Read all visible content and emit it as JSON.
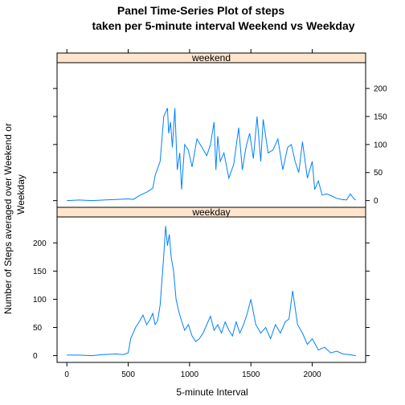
{
  "chart_data": {
    "type": "line",
    "title_line1": "Panel Time-Series Plot of steps",
    "title_line2": "taken per 5-minute interval Weekend vs Weekday",
    "xlabel": "5-minute Interval",
    "ylabel_line1": "Number of Steps averaged over Weekend or",
    "ylabel_line2": "Weekday",
    "xlim": [
      -80,
      2435
    ],
    "x_ticks": [
      0,
      500,
      1000,
      1500,
      2000
    ],
    "ylim": [
      -12,
      246
    ],
    "y_ticks": [
      0,
      50,
      100,
      150,
      200
    ],
    "line_color": "#0080ff",
    "strip_color": "#ffe5cc",
    "panels": [
      {
        "name": "weekend",
        "x": [
          0,
          100,
          200,
          300,
          400,
          500,
          540,
          600,
          650,
          700,
          720,
          760,
          790,
          820,
          830,
          845,
          860,
          880,
          900,
          920,
          935,
          960,
          990,
          1020,
          1060,
          1100,
          1140,
          1170,
          1200,
          1215,
          1230,
          1250,
          1280,
          1320,
          1360,
          1400,
          1430,
          1460,
          1490,
          1520,
          1550,
          1580,
          1600,
          1620,
          1640,
          1680,
          1720,
          1760,
          1800,
          1830,
          1860,
          1890,
          1920,
          1960,
          2000,
          2020,
          2050,
          2080,
          2120,
          2160,
          2200,
          2240,
          2280,
          2310,
          2340,
          2355
        ],
        "y": [
          0,
          1,
          0,
          1,
          2,
          3,
          2,
          10,
          15,
          22,
          45,
          70,
          150,
          165,
          120,
          140,
          95,
          165,
          55,
          85,
          20,
          100,
          90,
          60,
          110,
          95,
          80,
          100,
          140,
          55,
          115,
          70,
          85,
          40,
          65,
          130,
          55,
          95,
          120,
          75,
          150,
          70,
          145,
          115,
          85,
          90,
          110,
          55,
          95,
          100,
          70,
          50,
          105,
          40,
          70,
          20,
          35,
          10,
          12,
          8,
          4,
          2,
          1,
          12,
          3,
          1
        ]
      },
      {
        "name": "weekday",
        "x": [
          0,
          100,
          200,
          300,
          400,
          460,
          500,
          520,
          540,
          560,
          590,
          620,
          650,
          680,
          700,
          720,
          740,
          760,
          790,
          805,
          820,
          835,
          850,
          870,
          890,
          910,
          930,
          960,
          990,
          1020,
          1050,
          1080,
          1110,
          1140,
          1170,
          1200,
          1230,
          1260,
          1290,
          1320,
          1350,
          1380,
          1410,
          1440,
          1470,
          1500,
          1540,
          1580,
          1620,
          1660,
          1700,
          1740,
          1780,
          1810,
          1840,
          1880,
          1920,
          1960,
          2000,
          2050,
          2100,
          2150,
          2200,
          2250,
          2300,
          2355
        ],
        "y": [
          1,
          1,
          0,
          2,
          3,
          2,
          5,
          30,
          40,
          50,
          60,
          72,
          55,
          65,
          75,
          55,
          62,
          90,
          178,
          230,
          195,
          215,
          175,
          150,
          100,
          80,
          65,
          45,
          55,
          35,
          25,
          30,
          40,
          55,
          70,
          45,
          55,
          40,
          60,
          45,
          35,
          60,
          40,
          55,
          75,
          100,
          55,
          40,
          50,
          30,
          55,
          40,
          60,
          65,
          115,
          55,
          40,
          20,
          30,
          10,
          15,
          5,
          8,
          3,
          2,
          0
        ]
      }
    ]
  }
}
